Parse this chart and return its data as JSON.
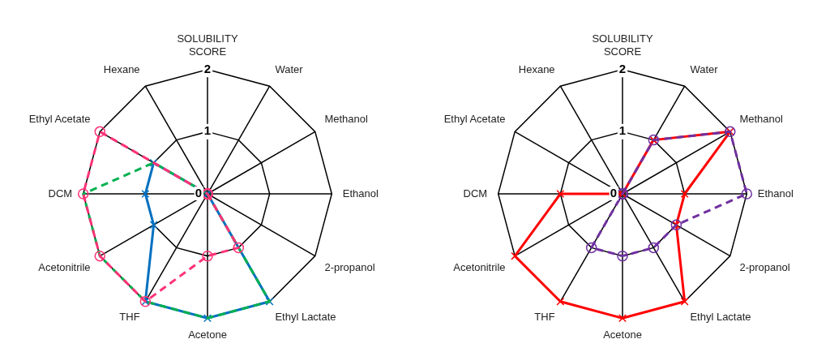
{
  "chart_data": [
    {
      "type": "radar",
      "categories": [
        "SOLUBILITY SCORE",
        "Water",
        "Methanol",
        "Ethanol",
        "2-propanol",
        "Ethyl Lactate",
        "Acetone",
        "THF",
        "Acetonitrile",
        "DCM",
        "Ethyl Acetate",
        "Hexane"
      ],
      "ylim": [
        0,
        2
      ],
      "yticks": [
        0,
        1,
        2
      ],
      "grid": true,
      "legend": false,
      "series": [
        {
          "color": "#0070c0",
          "values": [
            0,
            0,
            0,
            0,
            0,
            2,
            2,
            2,
            1,
            1,
            1,
            0
          ],
          "marker": "cross",
          "line_style": "solid"
        },
        {
          "color": "#00b050",
          "values": [
            0,
            0,
            0,
            0,
            0,
            2,
            2,
            2,
            2,
            2,
            1,
            0
          ],
          "marker": "none",
          "line_style": "dashed"
        },
        {
          "color": "#ff3377",
          "values": [
            0,
            0,
            0,
            0,
            0,
            1,
            1,
            2,
            2,
            2,
            2,
            0
          ],
          "marker": "circle",
          "line_style": "dashed"
        }
      ]
    },
    {
      "type": "radar",
      "categories": [
        "SOLUBILITY SCORE",
        "Water",
        "Methanol",
        "Ethanol",
        "2-propanol",
        "Ethyl Lactate",
        "Acetone",
        "THF",
        "Acetonitrile",
        "DCM",
        "Ethyl Acetate",
        "Hexane"
      ],
      "ylim": [
        0,
        2
      ],
      "yticks": [
        0,
        1,
        2
      ],
      "grid": true,
      "legend": false,
      "series": [
        {
          "color": "#ff0000",
          "values": [
            0,
            1,
            2,
            1,
            1,
            2,
            2,
            2,
            2,
            1,
            0,
            0
          ],
          "marker": "cross",
          "line_style": "solid"
        },
        {
          "color": "#7030a0",
          "values": [
            0,
            1,
            2,
            2,
            1,
            1,
            1,
            1,
            0,
            0,
            0,
            0
          ],
          "marker": "circle",
          "line_style": "dashed"
        }
      ]
    }
  ]
}
